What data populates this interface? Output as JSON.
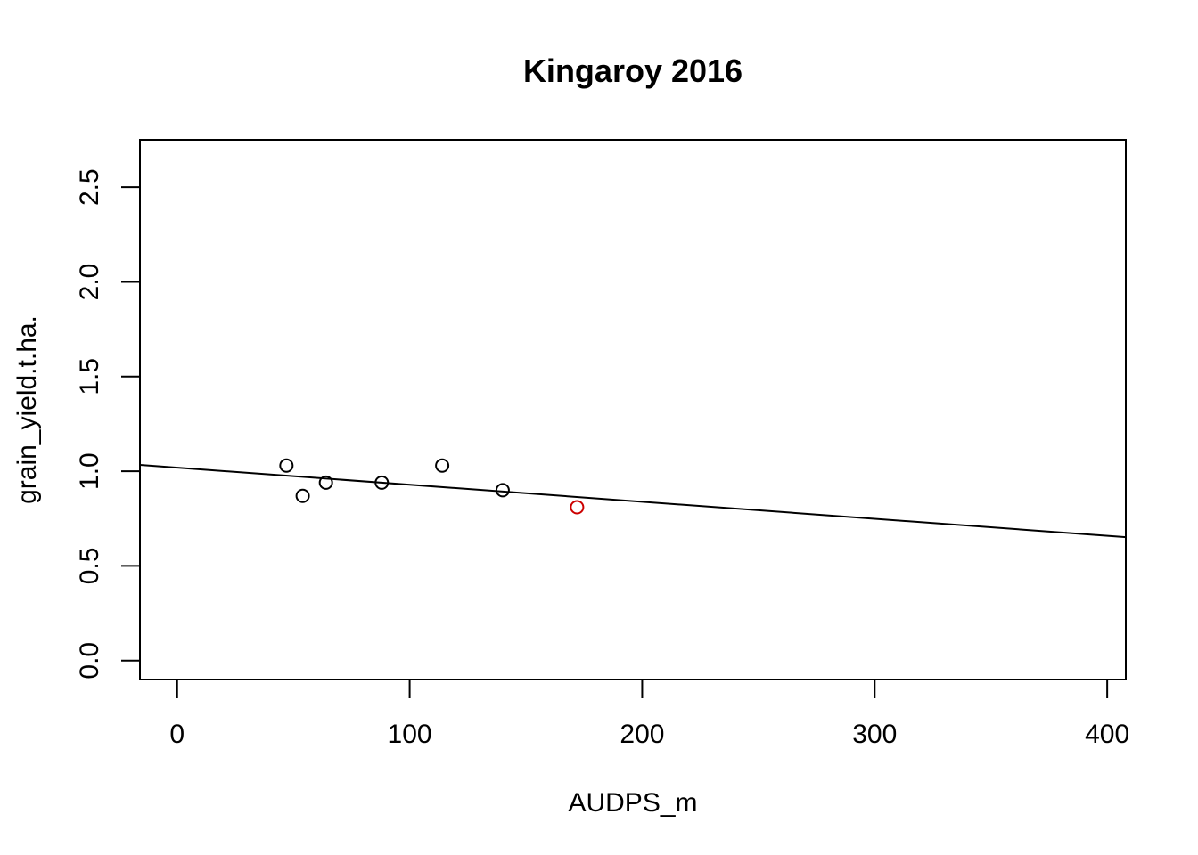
{
  "chart_data": {
    "type": "scatter",
    "title": "Kingaroy 2016",
    "xlabel": "AUDPS_m",
    "ylabel": "grain_yield.t.ha.",
    "xlim": [
      -16,
      408
    ],
    "ylim": [
      -0.1,
      2.75
    ],
    "x_ticks": [
      0,
      100,
      200,
      300,
      400
    ],
    "x_tick_labels": [
      "0",
      "100",
      "200",
      "300",
      "400"
    ],
    "y_ticks": [
      0.0,
      0.5,
      1.0,
      1.5,
      2.0,
      2.5
    ],
    "y_tick_labels": [
      "0.0",
      "0.5",
      "1.0",
      "1.5",
      "2.0",
      "2.5"
    ],
    "grid": false,
    "points": [
      {
        "x": 47,
        "y": 1.03,
        "color": "#000000"
      },
      {
        "x": 54,
        "y": 0.87,
        "color": "#000000"
      },
      {
        "x": 64,
        "y": 0.94,
        "color": "#000000"
      },
      {
        "x": 88,
        "y": 0.94,
        "color": "#000000"
      },
      {
        "x": 114,
        "y": 1.03,
        "color": "#000000"
      },
      {
        "x": 140,
        "y": 0.9,
        "color": "#000000"
      },
      {
        "x": 172,
        "y": 0.81,
        "color": "#cc0000"
      }
    ],
    "fit_line": {
      "intercept": 1.019,
      "slope": -0.0009,
      "color": "#000000"
    }
  }
}
